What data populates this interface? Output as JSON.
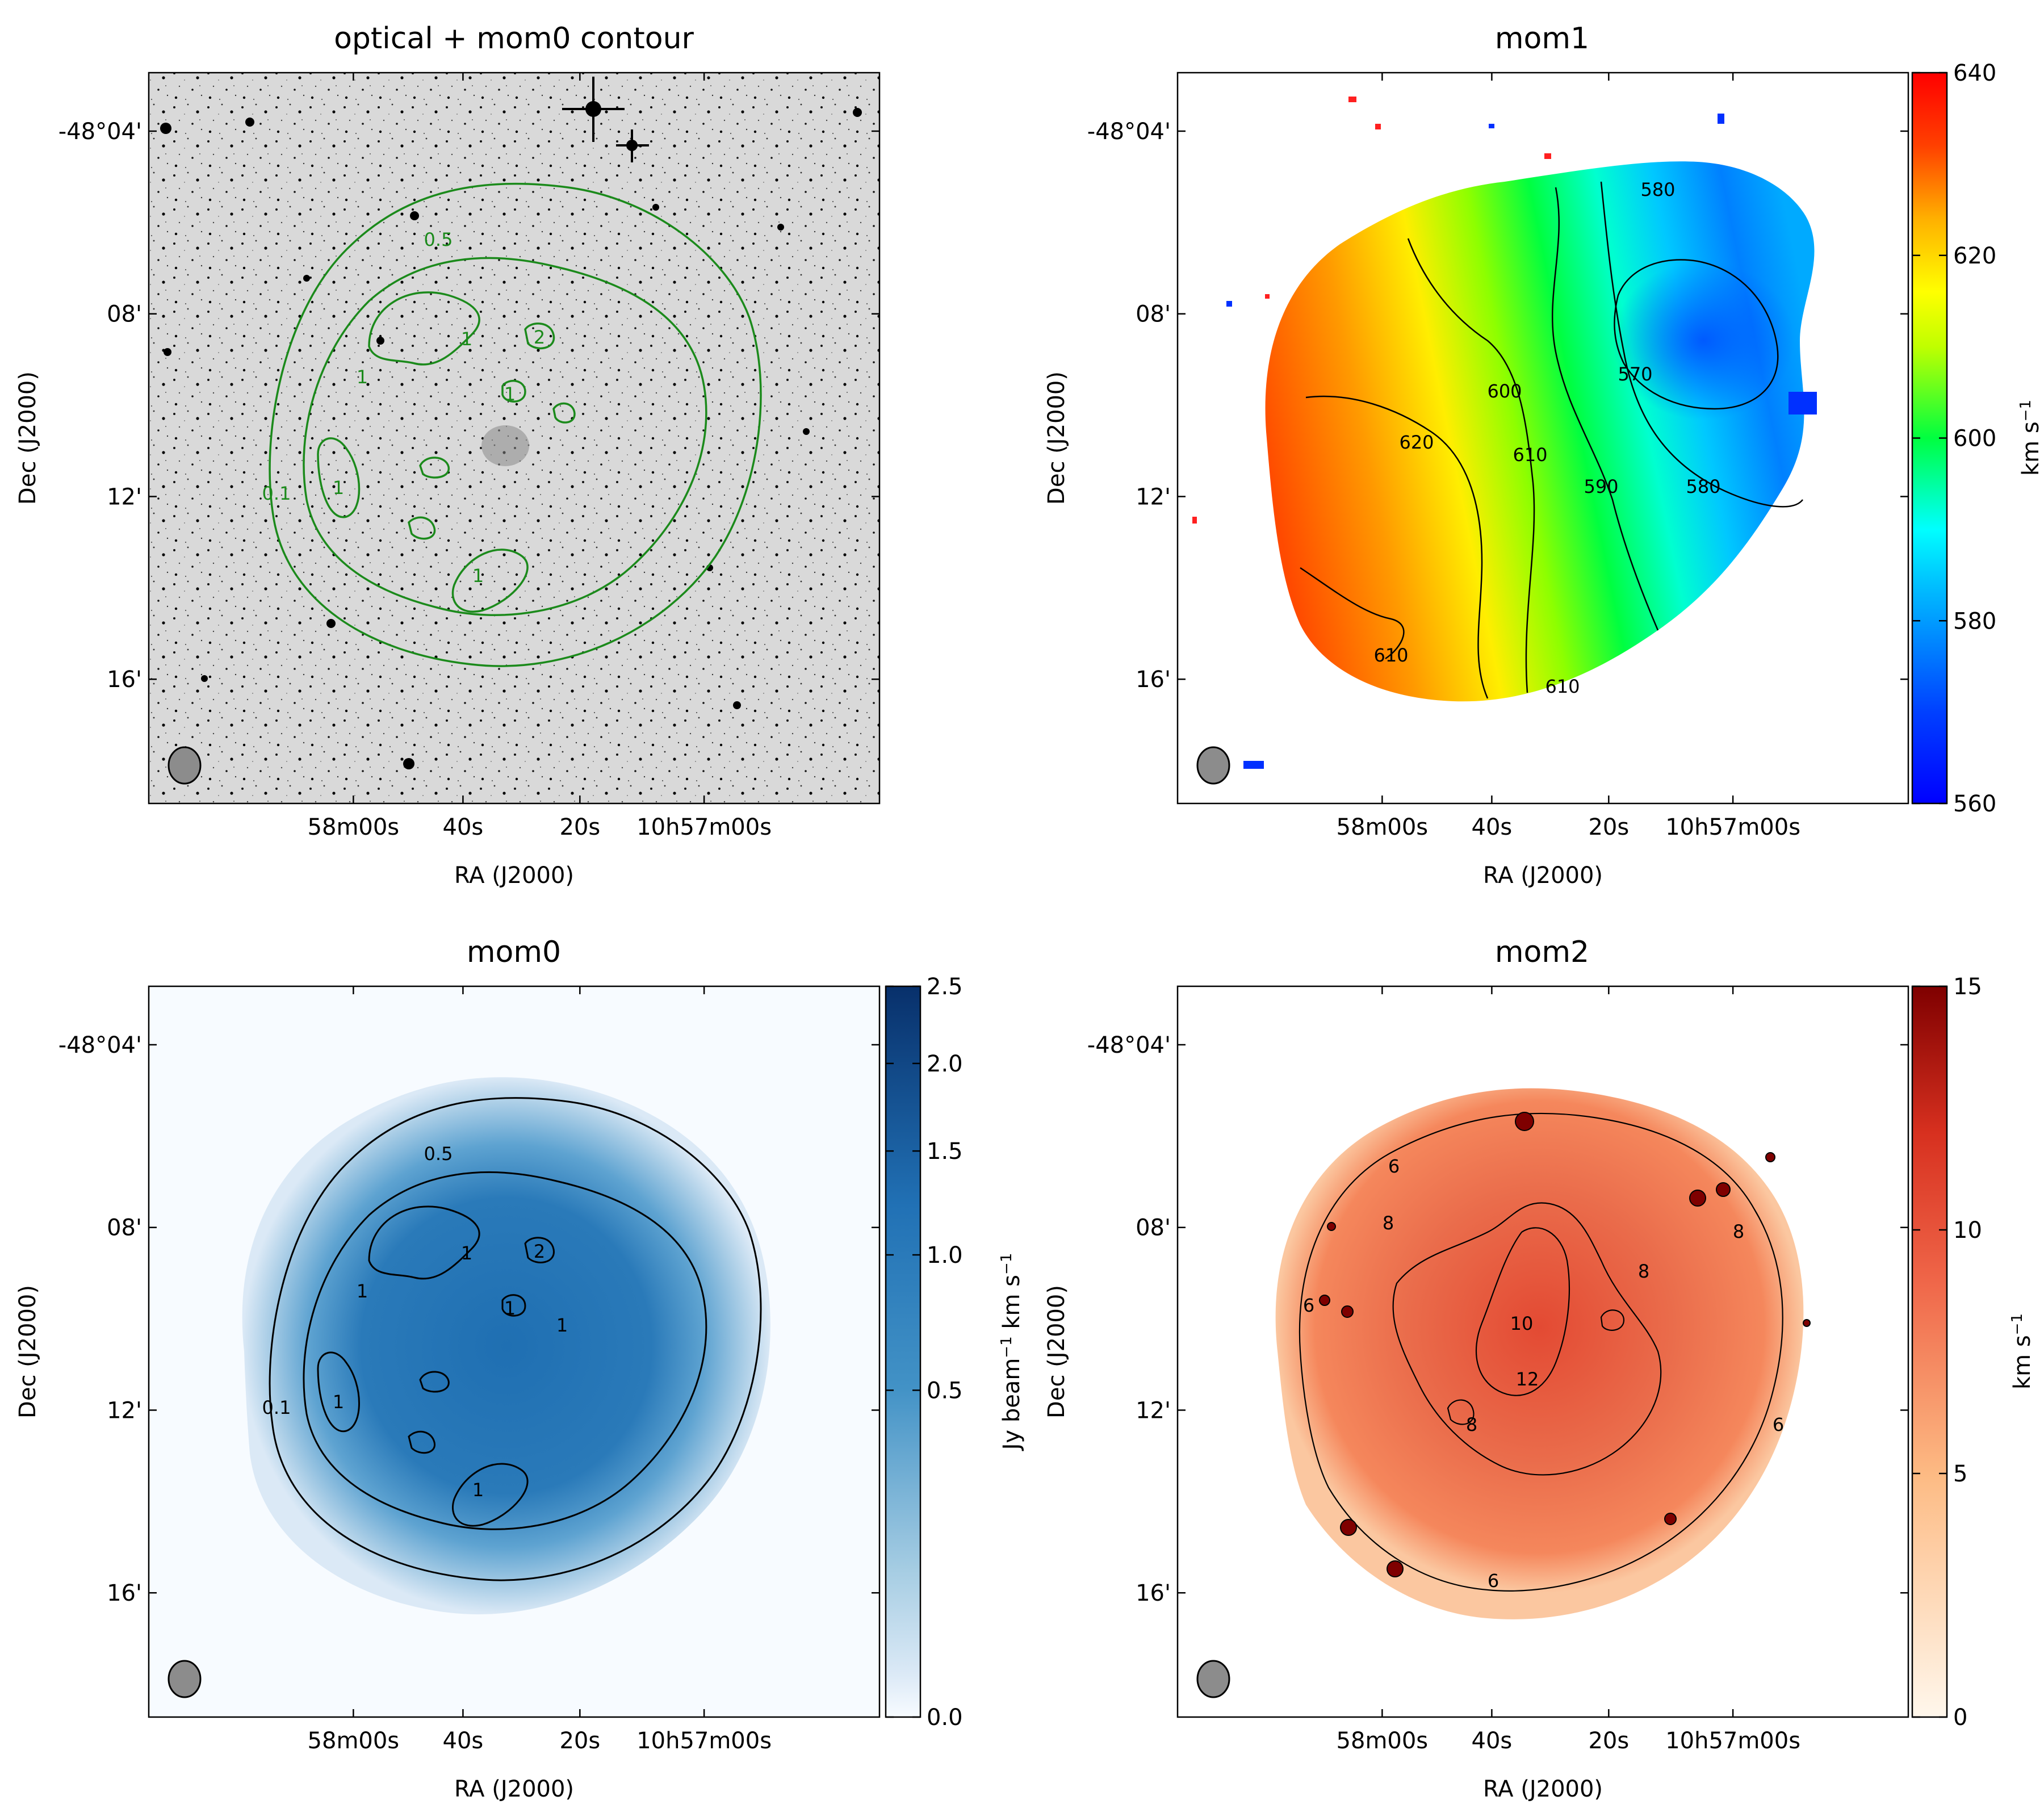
{
  "figure": {
    "panels": [
      {
        "key": "optical",
        "title": "optical + mom0 contour",
        "xlabel": "RA (J2000)",
        "ylabel": "Dec (J2000)",
        "xticks": [
          "58m00s",
          "40s",
          "20s",
          "10h57m00s"
        ],
        "yticks": [
          "-48°04'",
          "08'",
          "12'",
          "16'"
        ],
        "contour_labels": [
          "0.5",
          "1",
          "1",
          "1",
          "1",
          "1",
          "2",
          "0.1"
        ],
        "contour_color": "#1b8a1b"
      },
      {
        "key": "mom1",
        "title": "mom1",
        "xlabel": "RA (J2000)",
        "ylabel": "Dec (J2000)",
        "xticks": [
          "58m00s",
          "40s",
          "20s",
          "10h57m00s"
        ],
        "yticks": [
          "-48°04'",
          "08'",
          "12'",
          "16'"
        ],
        "contour_labels": [
          "580",
          "570",
          "600",
          "610",
          "590",
          "580",
          "620",
          "610",
          "610"
        ],
        "colorbar": {
          "ticks": [
            "640",
            "620",
            "600",
            "580",
            "560"
          ],
          "label_main": "km s",
          "label_sup": "−1",
          "colormap": "jet"
        }
      },
      {
        "key": "mom0",
        "title": "mom0",
        "xlabel": "RA (J2000)",
        "ylabel": "Dec (J2000)",
        "xticks": [
          "58m00s",
          "40s",
          "20s",
          "10h57m00s"
        ],
        "yticks": [
          "-48°04'",
          "08'",
          "12'",
          "16'"
        ],
        "contour_labels": [
          "0.5",
          "1",
          "2",
          "1",
          "1",
          "1",
          "1",
          "1",
          "0.1"
        ],
        "colorbar": {
          "ticks": [
            "2.5",
            "2.0",
            "1.5",
            "1.0",
            "0.5",
            "0.0"
          ],
          "label_main": "Jy beam",
          "label_sup": "−1",
          "label_tail": " km s",
          "label_sup2": "−1",
          "colormap": "Blues"
        }
      },
      {
        "key": "mom2",
        "title": "mom2",
        "xlabel": "RA (J2000)",
        "ylabel": "Dec (J2000)",
        "xticks": [
          "58m00s",
          "40s",
          "20s",
          "10h57m00s"
        ],
        "yticks": [
          "-48°04'",
          "08'",
          "12'",
          "16'"
        ],
        "contour_labels": [
          "6",
          "8",
          "10",
          "12",
          "8",
          "8",
          "6",
          "6",
          "6",
          "8"
        ],
        "colorbar": {
          "ticks": [
            "15",
            "10",
            "5",
            "0"
          ],
          "label_main": "km s",
          "label_sup": "−1",
          "colormap": "OrRd"
        }
      }
    ]
  },
  "chart_data": [
    {
      "type": "heatmap",
      "title": "optical + mom0 contour",
      "xlabel": "RA (J2000)",
      "ylabel": "Dec (J2000)",
      "x_ticks": [
        "58m00s",
        "40s",
        "20s",
        "10h57m00s"
      ],
      "y_ticks": [
        "-48°04'",
        "08'",
        "12'",
        "16'"
      ],
      "contour_levels": [
        0.1,
        0.5,
        1,
        2
      ],
      "grid": false
    },
    {
      "type": "heatmap",
      "title": "mom1",
      "xlabel": "RA (J2000)",
      "ylabel": "Dec (J2000)",
      "x_ticks": [
        "58m00s",
        "40s",
        "20s",
        "10h57m00s"
      ],
      "y_ticks": [
        "-48°04'",
        "08'",
        "12'",
        "16'"
      ],
      "colorbar_range": [
        560,
        640
      ],
      "colorbar_ticks": [
        560,
        580,
        600,
        620,
        640
      ],
      "contour_levels": [
        570,
        580,
        590,
        600,
        610,
        620
      ],
      "colorbar_unit": "km s^-1",
      "grid": false
    },
    {
      "type": "heatmap",
      "title": "mom0",
      "xlabel": "RA (J2000)",
      "ylabel": "Dec (J2000)",
      "x_ticks": [
        "58m00s",
        "40s",
        "20s",
        "10h57m00s"
      ],
      "y_ticks": [
        "-48°04'",
        "08'",
        "12'",
        "16'"
      ],
      "colorbar_range": [
        0.0,
        2.5
      ],
      "colorbar_ticks": [
        0.0,
        0.5,
        1.0,
        1.5,
        2.0,
        2.5
      ],
      "contour_levels": [
        0.1,
        0.5,
        1,
        2
      ],
      "colorbar_unit": "Jy beam^-1 km s^-1",
      "grid": false
    },
    {
      "type": "heatmap",
      "title": "mom2",
      "xlabel": "RA (J2000)",
      "ylabel": "Dec (J2000)",
      "x_ticks": [
        "58m00s",
        "40s",
        "20s",
        "10h57m00s"
      ],
      "y_ticks": [
        "-48°04'",
        "08'",
        "12'",
        "16'"
      ],
      "colorbar_range": [
        0,
        15
      ],
      "colorbar_ticks": [
        0,
        5,
        10,
        15
      ],
      "contour_levels": [
        6,
        8,
        10,
        12
      ],
      "colorbar_unit": "km s^-1",
      "grid": false
    }
  ]
}
